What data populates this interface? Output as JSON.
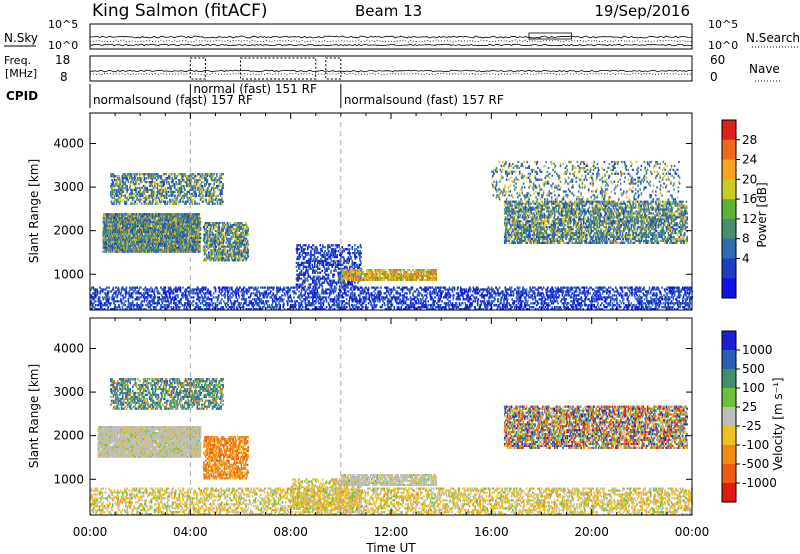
{
  "header": {
    "title": "King Salmon (fitACF)",
    "beam": "Beam 13",
    "date": "19/Sep/2016"
  },
  "aux_panels": {
    "nsky_label": "N.Sky",
    "nsky_ticks": [
      "10^5",
      "10^0"
    ],
    "nsearch_label": "N.Search",
    "nsearch_ticks": [
      "10^5",
      "10^0"
    ],
    "freq_label_1": "Freq.",
    "freq_label_2": "[MHz]",
    "freq_ticks": [
      "18",
      "8"
    ],
    "nave_label": "Nave",
    "nave_ticks": [
      "60",
      "0"
    ],
    "cpid_label": "CPID",
    "cpid_segments": [
      {
        "label": "normalsound (fast) 157 RF",
        "start_hr": 0.0,
        "end_hr": 4.0
      },
      {
        "label": "normal (fast) 151 RF",
        "start_hr": 4.0,
        "end_hr": 10.0
      },
      {
        "label": "normalsound (fast) 157 RF",
        "start_hr": 10.0,
        "end_hr": 24.0
      }
    ]
  },
  "colorbars": {
    "power": {
      "label": "Power [dB]",
      "ticks": [
        "28",
        "24",
        "20",
        "16",
        "12",
        "8",
        "4"
      ],
      "colors": [
        "#e0201b",
        "#ee6a1a",
        "#f5a51e",
        "#c9cc22",
        "#5bb33a",
        "#4a8f6c",
        "#2f6baf",
        "#1b3fbe",
        "#0e12e6"
      ]
    },
    "velocity": {
      "label": "Velocity [m s⁻¹]",
      "ticks": [
        "1000",
        "500",
        "100",
        "25",
        "-25",
        "-100",
        "-500",
        "-1000"
      ],
      "colors": [
        "#1a1fd6",
        "#2a5fb8",
        "#3f8f6c",
        "#6cc03a",
        "#bdbdbd",
        "#f0c020",
        "#f08a18",
        "#f05a12",
        "#e01a12"
      ]
    }
  },
  "chart_data": [
    {
      "type": "heatmap",
      "title": "Power",
      "xlabel": "Time UT",
      "ylabel": "Slant Range [km]",
      "xlim": [
        0,
        24
      ],
      "ylim": [
        180,
        4700
      ],
      "x_ticks": [
        "00:00",
        "04:00",
        "08:00",
        "12:00",
        "16:00",
        "20:00",
        "00:00"
      ],
      "y_ticks": [
        "1000",
        "2000",
        "3000",
        "4000"
      ],
      "scatter_regions": [
        {
          "t0": 0.5,
          "t1": 4.4,
          "r0": 1500,
          "r1": 2400,
          "level": "mid",
          "density": 0.8
        },
        {
          "t0": 0.8,
          "t1": 5.3,
          "r0": 2600,
          "r1": 3300,
          "level": "mid",
          "density": 0.35
        },
        {
          "t0": 4.5,
          "t1": 6.3,
          "r0": 1300,
          "r1": 2200,
          "level": "mid",
          "density": 0.45
        },
        {
          "t0": 8.2,
          "t1": 10.8,
          "r0": 700,
          "r1": 1700,
          "level": "low",
          "density": 0.3
        },
        {
          "t0": 10.0,
          "t1": 13.8,
          "r0": 850,
          "r1": 1100,
          "level": "high",
          "density": 0.55
        },
        {
          "t0": 16.5,
          "t1": 23.8,
          "r0": 1700,
          "r1": 2700,
          "level": "mid",
          "density": 0.45
        },
        {
          "t0": 16.0,
          "t1": 23.5,
          "r0": 2700,
          "r1": 3600,
          "level": "mid",
          "density": 0.12
        },
        {
          "t0": 0.0,
          "t1": 24.0,
          "r0": 180,
          "r1": 700,
          "level": "low",
          "density": 0.3
        }
      ]
    },
    {
      "type": "heatmap",
      "title": "Velocity",
      "xlabel": "Time UT",
      "ylabel": "Slant Range [km]",
      "xlim": [
        0,
        24
      ],
      "ylim": [
        180,
        4700
      ],
      "x_ticks": [
        "00:00",
        "04:00",
        "08:00",
        "12:00",
        "16:00",
        "20:00",
        "00:00"
      ],
      "y_ticks": [
        "1000",
        "2000",
        "3000",
        "4000"
      ],
      "scatter_regions": [
        {
          "t0": 0.3,
          "t1": 4.4,
          "r0": 1500,
          "r1": 2200,
          "level": "zero",
          "density": 0.8
        },
        {
          "t0": 0.8,
          "t1": 5.3,
          "r0": 2600,
          "r1": 3300,
          "level": "toward",
          "density": 0.35
        },
        {
          "t0": 4.5,
          "t1": 6.3,
          "r0": 1000,
          "r1": 2000,
          "level": "away",
          "density": 0.45
        },
        {
          "t0": 8.0,
          "t1": 10.8,
          "r0": 300,
          "r1": 1000,
          "level": "away_weak",
          "density": 0.3
        },
        {
          "t0": 10.0,
          "t1": 13.8,
          "r0": 850,
          "r1": 1100,
          "level": "zero",
          "density": 0.55
        },
        {
          "t0": 16.5,
          "t1": 23.8,
          "r0": 1700,
          "r1": 2700,
          "level": "mixed",
          "density": 0.45
        },
        {
          "t0": 0.0,
          "t1": 24.0,
          "r0": 180,
          "r1": 800,
          "level": "away_weak",
          "density": 0.3
        }
      ]
    }
  ]
}
